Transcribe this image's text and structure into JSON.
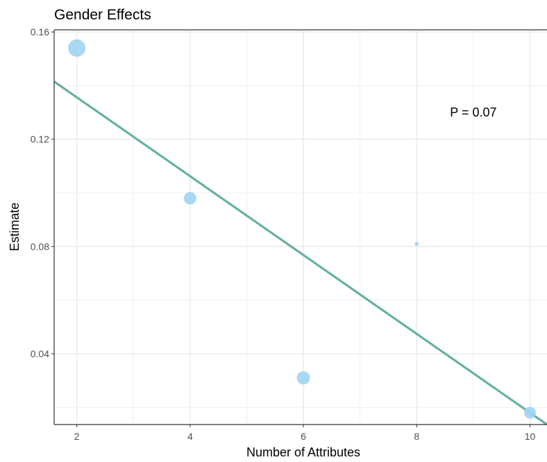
{
  "chart_data": {
    "type": "scatter",
    "title": "Gender Effects",
    "xlabel": "Number of Attributes",
    "ylabel": "Estimate",
    "xlim": [
      1.6,
      10.3
    ],
    "ylim": [
      0.0136,
      0.1608
    ],
    "x_ticks": [
      2,
      4,
      6,
      8,
      10
    ],
    "x_tick_labels": [
      "2",
      "4",
      "6",
      "8",
      "10"
    ],
    "y_ticks": [
      0.04,
      0.08,
      0.12,
      0.16
    ],
    "y_tick_labels": [
      "0.04",
      "0.08",
      "0.12",
      "0.16"
    ],
    "y_minor_ticks": [
      0.02,
      0.06,
      0.1,
      0.14
    ],
    "x_minor_ticks": [
      3,
      5,
      7,
      9
    ],
    "grid": true,
    "points": [
      {
        "x": 2,
        "y": 0.154,
        "size": 12.5
      },
      {
        "x": 4,
        "y": 0.098,
        "size": 9
      },
      {
        "x": 6,
        "y": 0.031,
        "size": 9.5
      },
      {
        "x": 8,
        "y": 0.081,
        "size": 3
      },
      {
        "x": 10,
        "y": 0.018,
        "size": 8.5
      }
    ],
    "fit_line": {
      "x": [
        1.6,
        10.3
      ],
      "y": [
        0.1415,
        0.0136
      ]
    },
    "annotation": {
      "text": "P = 0.07",
      "x": 9.0,
      "y": 0.13
    },
    "colors": {
      "points": "#9fd4f2",
      "fit_line": "#66b0a0",
      "grid": "#ebebeb",
      "panel_border": "#333333",
      "tick_text": "#4d4d4d"
    }
  }
}
